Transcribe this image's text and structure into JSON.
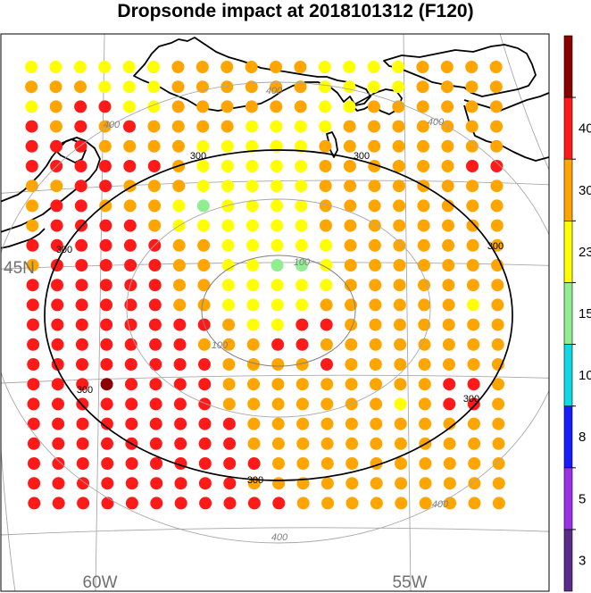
{
  "title": "Dropsonde impact at 2018101312 (F120)",
  "lat_labels": [
    {
      "text": "45N",
      "lat": 45
    }
  ],
  "lon_labels": [
    {
      "text": "60W",
      "lon": -60
    },
    {
      "text": "55W",
      "lon": -55
    }
  ],
  "contours": [
    {
      "value": "100",
      "color": "#808080"
    },
    {
      "value": "300",
      "color": "#000000"
    },
    {
      "value": "400",
      "color": "#808080"
    }
  ],
  "colorbar": {
    "labels": [
      "3",
      "5",
      "8",
      "10",
      "15",
      "23",
      "30",
      "40"
    ],
    "colors": [
      "#5b2c8c",
      "#9b30e8",
      "#1a1aff",
      "#10d8e8",
      "#90ee90",
      "#ffff00",
      "#ffa500",
      "#ff1a1a",
      "#8b0000"
    ]
  },
  "dots": {
    "rows": [
      "YYYYYYOOOOOOYYYYOOOO",
      "OOOYYYOOOOOOYYYYOOOO",
      "YORRYYOOOOOOYYOOOOOO",
      "ROROROOOOYYYYOOOOOOO",
      "RRROOOOYYYYYOOOOOOOO",
      "RRRRRROYYYYYOOOOOORR",
      "OORROOOYYYYYOOOOOOOO",
      "ORROOOYGYYYYOOOOOOOO",
      "ORRRROYYYYYYOOOOOOOO",
      "RRRRRROOYYYYYOOOOOOO",
      "ORRRRROOYYGGYOOOOOOO",
      "RRRRRROOYYYYYOOOOOOO",
      "RRRRRROOYYYYOOOOOOYO",
      "RRRRRRRROYYRROOOOOOO",
      "RRRRRRROOORROOOOOOOO",
      "RRRRRRRROOOOROOOOOOO",
      "RRRDRRRROOOOOOOOORRO",
      "RRRRRRRROOOOOOOYORRO",
      "RRRRRRRRROOOOOOOOOOO",
      "RRRRRRRRROOOOOOOOOOO",
      "RRRRRRRRRROOOOOOOOOO",
      "RRRRRRRRROOOOOOOOOOO",
      "RRRRRRRRRRROOOOOOOOO"
    ],
    "color_codes": {
      "Y": "#ffff00",
      "O": "#ffa500",
      "R": "#ff1a1a",
      "G": "#90ee90",
      "D": "#8b0000"
    }
  }
}
